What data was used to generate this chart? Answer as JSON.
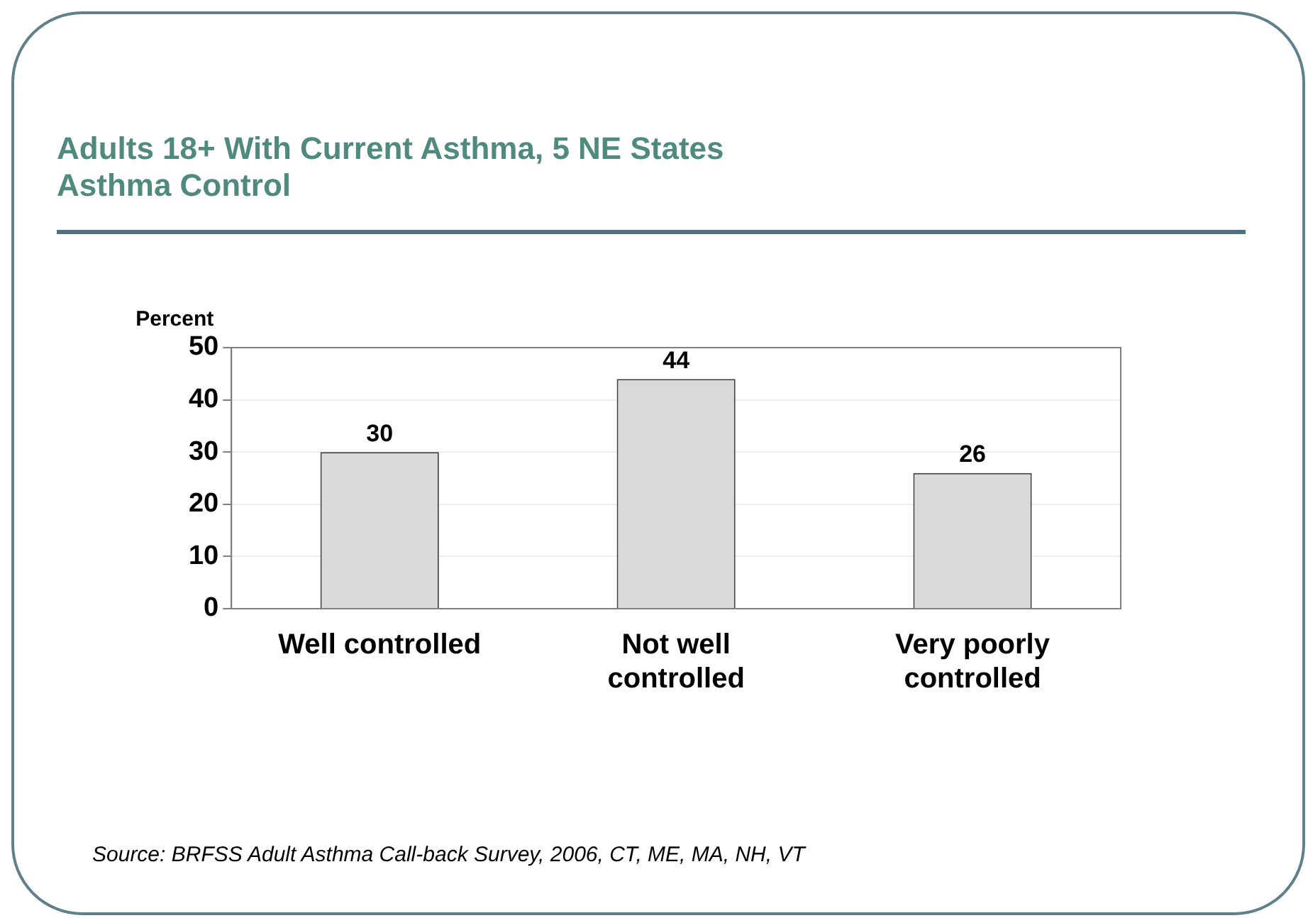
{
  "chart_data": {
    "type": "bar",
    "title": "Adults 18+ With Current Asthma, 5 NE States",
    "subtitle": "Asthma Control",
    "ylabel": "Percent",
    "categories": [
      "Well controlled",
      "Not well controlled",
      "Very poorly controlled"
    ],
    "values": [
      30,
      44,
      26
    ],
    "color": "#d9d9d9",
    "ylim": [
      0,
      50
    ],
    "yticks": [
      0,
      10,
      20,
      30,
      40,
      50
    ],
    "grid": "y",
    "legend": false,
    "data_labels": true,
    "annotations": [
      "Source: BRFSS Adult Asthma Call-back Survey, 2006, CT, ME, MA, NH, VT"
    ]
  }
}
